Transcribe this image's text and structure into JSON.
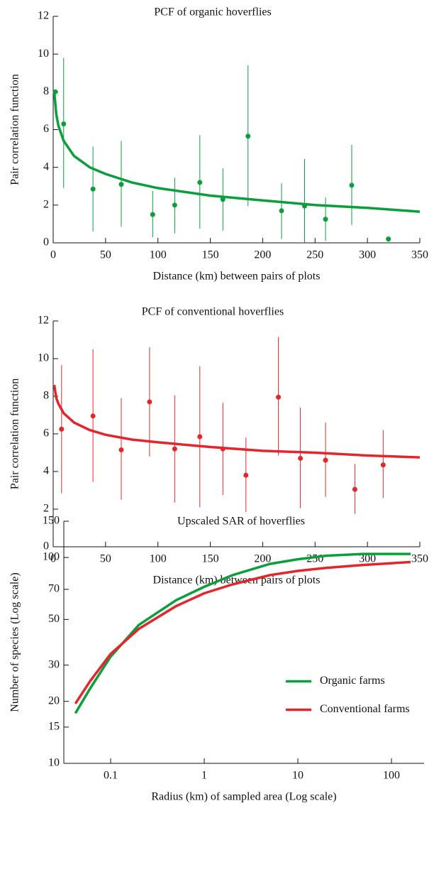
{
  "chart_data": [
    {
      "type": "scatter",
      "title": "PCF of organic hoverflies",
      "xlabel": "Distance (km) between pairs of plots",
      "ylabel": "Pair correlation function",
      "color": "#0a9e3c",
      "points": {
        "x": [
          2,
          10,
          38,
          65,
          95,
          116,
          140,
          162,
          186,
          218,
          240,
          260,
          285,
          320
        ],
        "y": [
          8.0,
          6.3,
          2.85,
          3.1,
          1.5,
          2.0,
          3.2,
          2.3,
          5.65,
          1.7,
          1.95,
          1.25,
          3.05,
          0.2
        ],
        "y_lower": [
          7.9,
          2.9,
          0.6,
          0.85,
          0.3,
          0.5,
          0.75,
          0.65,
          1.95,
          0.2,
          0,
          0.1,
          0.95,
          0.05
        ],
        "y_upper": [
          8.1,
          9.8,
          5.1,
          5.4,
          2.75,
          3.45,
          5.7,
          3.95,
          9.4,
          3.15,
          4.45,
          2.4,
          5.2,
          0.35
        ]
      },
      "fit": {
        "x": [
          1,
          3,
          5,
          10,
          20,
          35,
          50,
          75,
          100,
          150,
          200,
          250,
          300,
          350
        ],
        "y": [
          8.0,
          6.8,
          6.2,
          5.4,
          4.6,
          4.0,
          3.65,
          3.2,
          2.9,
          2.5,
          2.25,
          2.0,
          1.85,
          1.65
        ]
      },
      "xlim": [
        0,
        350
      ],
      "ylim": [
        0,
        12
      ],
      "xticks": [
        0,
        50,
        100,
        150,
        200,
        250,
        300,
        350
      ],
      "yticks": [
        0,
        2,
        4,
        6,
        8,
        10,
        12
      ]
    },
    {
      "type": "scatter",
      "title": "PCF of conventional hoverflies",
      "xlabel": "Distance (km) between pairs of plots",
      "ylabel": "Pair correlation function",
      "color": "#e3262b",
      "points": {
        "x": [
          8,
          38,
          65,
          92,
          116,
          140,
          162,
          184,
          215,
          236,
          260,
          288,
          315
        ],
        "y": [
          6.25,
          6.95,
          5.15,
          7.7,
          5.2,
          5.85,
          5.2,
          3.8,
          7.95,
          4.7,
          4.6,
          3.05,
          4.35
        ],
        "y_lower": [
          2.85,
          3.45,
          2.5,
          4.8,
          2.35,
          2.1,
          2.75,
          1.85,
          4.85,
          2.05,
          2.65,
          1.75,
          2.6
        ],
        "y_upper": [
          9.65,
          10.5,
          7.9,
          10.6,
          8.05,
          9.6,
          7.65,
          5.8,
          11.15,
          7.4,
          6.6,
          4.4,
          6.2
        ]
      },
      "fit": {
        "x": [
          1,
          3,
          5,
          10,
          20,
          35,
          50,
          75,
          100,
          150,
          200,
          250,
          300,
          350
        ],
        "y": [
          8.6,
          7.9,
          7.6,
          7.1,
          6.6,
          6.2,
          5.95,
          5.7,
          5.55,
          5.3,
          5.1,
          5.0,
          4.85,
          4.75
        ]
      },
      "xlim": [
        0,
        350
      ],
      "ylim": [
        0,
        12
      ],
      "xticks": [
        0,
        50,
        100,
        150,
        200,
        250,
        300,
        350
      ],
      "yticks": [
        0,
        2,
        4,
        6,
        8,
        10,
        12
      ]
    },
    {
      "type": "line",
      "title": "Upscaled SAR of hoverflies",
      "xlabel": "Radius (km) of sampled area (Log scale)",
      "ylabel": "Number of species (Log scale)",
      "xscale": "log",
      "yscale": "log",
      "legend": "right",
      "series": [
        {
          "name": "Organic farms",
          "color": "#0a9e3c",
          "x": [
            0.042,
            0.06,
            0.1,
            0.2,
            0.5,
            1,
            2,
            5,
            10,
            20,
            50,
            160
          ],
          "y": [
            17.5,
            23,
            33,
            47,
            62,
            72,
            82,
            93,
            98,
            102,
            104,
            104
          ]
        },
        {
          "name": "Conventional farms",
          "color": "#e3262b",
          "x": [
            0.042,
            0.06,
            0.1,
            0.2,
            0.5,
            1,
            2,
            5,
            10,
            20,
            50,
            160
          ],
          "y": [
            19.5,
            25,
            34,
            45,
            58,
            67,
            74,
            82,
            86,
            89,
            92,
            95
          ]
        }
      ],
      "xlim": [
        0.0316,
        223
      ],
      "ylim": [
        10,
        150
      ],
      "xticks": [
        0.1,
        1,
        10,
        100
      ],
      "yticks": [
        10,
        15,
        20,
        30,
        50,
        70,
        100,
        150
      ]
    }
  ]
}
